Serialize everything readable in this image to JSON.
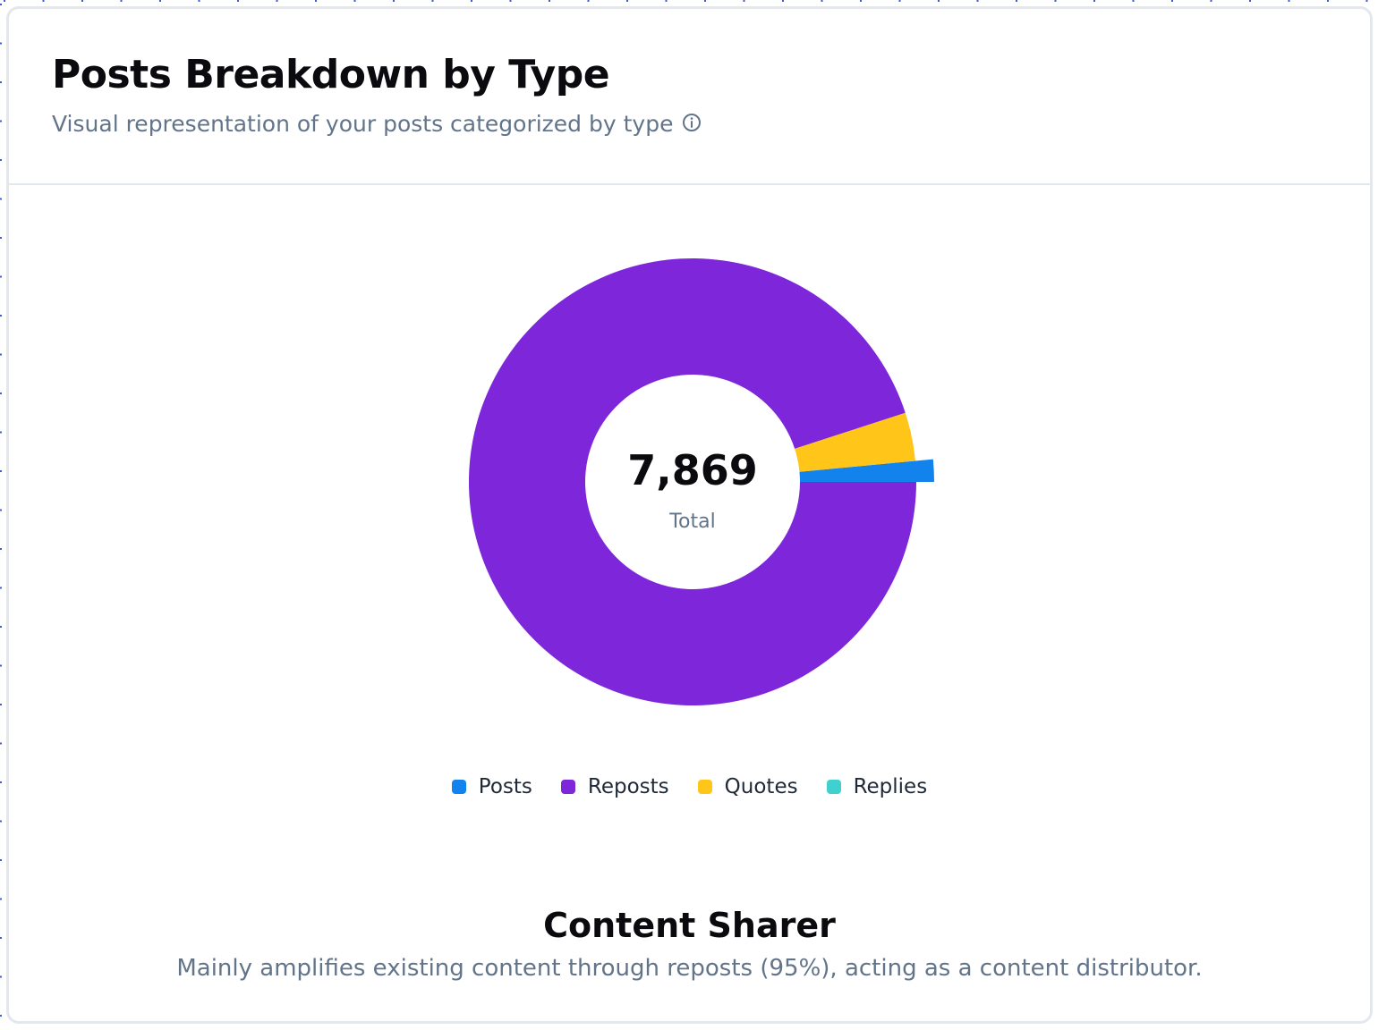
{
  "header": {
    "title": "Posts Breakdown by Type",
    "subtitle": "Visual representation of your posts categorized by type",
    "info_icon": "info-circle-icon"
  },
  "center": {
    "total": "7,869",
    "label": "Total"
  },
  "chart_data": {
    "type": "pie",
    "variant": "donut",
    "title": "Posts Breakdown by Type",
    "total": 7869,
    "categories": [
      "Posts",
      "Reposts",
      "Quotes",
      "Replies"
    ],
    "values": [
      1.5,
      95,
      3.5,
      0
    ],
    "unit": "percent",
    "colors": [
      "#1283ec",
      "#7e26da",
      "#ffc518",
      "#3fd0cf"
    ],
    "active_slice": "Posts",
    "legend_position": "bottom"
  },
  "legend": {
    "items": [
      {
        "label": "Posts",
        "color": "#1283ec"
      },
      {
        "label": "Reposts",
        "color": "#7e26da"
      },
      {
        "label": "Quotes",
        "color": "#ffc518"
      },
      {
        "label": "Replies",
        "color": "#3fd0cf"
      }
    ]
  },
  "insight": {
    "title": "Content Sharer",
    "description": "Mainly amplifies existing content through reposts (95%), acting as a content distributor."
  }
}
